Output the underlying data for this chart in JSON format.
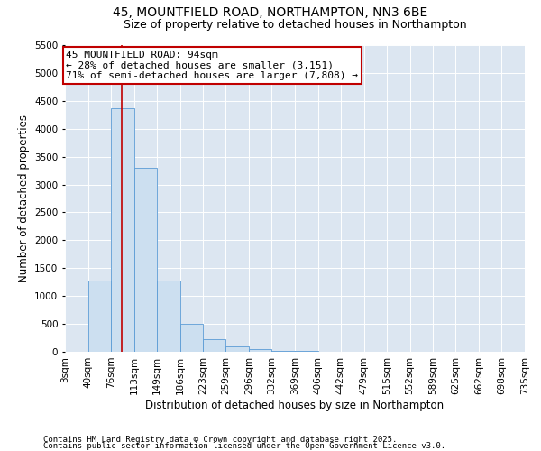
{
  "title_line1": "45, MOUNTFIELD ROAD, NORTHAMPTON, NN3 6BE",
  "title_line2": "Size of property relative to detached houses in Northampton",
  "xlabel": "Distribution of detached houses by size in Northampton",
  "ylabel": "Number of detached properties",
  "footnote1": "Contains HM Land Registry data © Crown copyright and database right 2025.",
  "footnote2": "Contains public sector information licensed under the Open Government Licence v3.0.",
  "annotation_title": "45 MOUNTFIELD ROAD: 94sqm",
  "annotation_line2": "← 28% of detached houses are smaller (3,151)",
  "annotation_line3": "71% of semi-detached houses are larger (7,808) →",
  "bar_edges": [
    3,
    40,
    76,
    113,
    149,
    186,
    223,
    259,
    296,
    332,
    369,
    406,
    442,
    479,
    515,
    552,
    589,
    625,
    662,
    698,
    735
  ],
  "bar_heights": [
    0,
    1275,
    4375,
    3300,
    1275,
    500,
    230,
    100,
    50,
    20,
    10,
    5,
    2,
    1,
    0,
    0,
    0,
    0,
    0,
    0
  ],
  "bar_color": "#ccdff0",
  "bar_edge_color": "#5b9bd5",
  "vline_x": 94,
  "vline_color": "#c00000",
  "annotation_box_color": "#c00000",
  "plot_bg_color": "#dce6f1",
  "fig_bg_color": "#ffffff",
  "ylim": [
    0,
    5500
  ],
  "yticks": [
    0,
    500,
    1000,
    1500,
    2000,
    2500,
    3000,
    3500,
    4000,
    4500,
    5000,
    5500
  ],
  "title_fontsize": 10,
  "subtitle_fontsize": 9,
  "axis_label_fontsize": 8.5,
  "tick_fontsize": 7.5,
  "annotation_fontsize": 8,
  "footnote_fontsize": 6.5
}
